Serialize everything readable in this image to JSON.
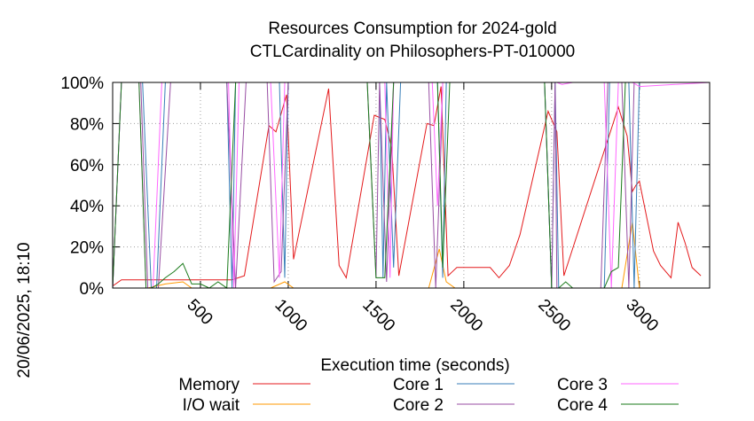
{
  "chart_data": {
    "type": "line",
    "title": [
      "Resources Consumption for 2024-gold",
      "CTLCardinality on Philosophers-PT-010000"
    ],
    "xlabel": "Execution time (seconds)",
    "side_label": "20/06/2025, 18:10",
    "xlim": [
      0,
      3400
    ],
    "ylim": [
      0,
      100
    ],
    "x_ticks": [
      500,
      1000,
      1500,
      2000,
      2500,
      3000
    ],
    "y_ticks": [
      0,
      20,
      40,
      60,
      80,
      100
    ],
    "y_tick_labels": [
      "0%",
      "20%",
      "40%",
      "60%",
      "80%",
      "100%"
    ],
    "grid": true,
    "legend_position": "bottom",
    "series": [
      {
        "name": "Memory",
        "color": "#e41a1c",
        "points": [
          [
            0,
            1
          ],
          [
            50,
            4
          ],
          [
            100,
            4
          ],
          [
            200,
            4
          ],
          [
            300,
            4
          ],
          [
            400,
            4
          ],
          [
            500,
            4
          ],
          [
            600,
            4
          ],
          [
            680,
            4
          ],
          [
            750,
            6
          ],
          [
            890,
            79
          ],
          [
            930,
            76
          ],
          [
            990,
            94
          ],
          [
            1030,
            14
          ],
          [
            1230,
            97
          ],
          [
            1290,
            11
          ],
          [
            1330,
            5
          ],
          [
            1490,
            84
          ],
          [
            1550,
            82
          ],
          [
            1590,
            68
          ],
          [
            1630,
            6
          ],
          [
            1790,
            80
          ],
          [
            1830,
            79
          ],
          [
            1870,
            98
          ],
          [
            1910,
            6
          ],
          [
            1960,
            10
          ],
          [
            2150,
            10
          ],
          [
            2200,
            5
          ],
          [
            2260,
            11
          ],
          [
            2320,
            26
          ],
          [
            2480,
            86
          ],
          [
            2530,
            76
          ],
          [
            2570,
            6
          ],
          [
            2880,
            88
          ],
          [
            2930,
            74
          ],
          [
            2960,
            47
          ],
          [
            2980,
            50
          ],
          [
            3000,
            52
          ],
          [
            3080,
            18
          ],
          [
            3120,
            11
          ],
          [
            3180,
            5
          ],
          [
            3220,
            32
          ],
          [
            3260,
            22
          ],
          [
            3300,
            10
          ],
          [
            3350,
            6
          ]
        ]
      },
      {
        "name": "I/O wait",
        "color": "#ff9900",
        "points": [
          [
            0,
            0
          ],
          [
            100,
            0
          ],
          [
            200,
            0
          ],
          [
            300,
            2
          ],
          [
            400,
            3
          ],
          [
            450,
            0
          ],
          [
            600,
            0
          ],
          [
            700,
            0
          ],
          [
            900,
            0
          ],
          [
            980,
            3
          ],
          [
            1030,
            0
          ],
          [
            1800,
            0
          ],
          [
            1860,
            19
          ],
          [
            1900,
            3
          ],
          [
            1950,
            0
          ],
          [
            2500,
            0
          ],
          [
            2900,
            0
          ],
          [
            2960,
            32
          ],
          [
            3000,
            0
          ],
          [
            3400,
            0
          ]
        ]
      },
      {
        "name": "Core 1",
        "color": "#377eb8",
        "points": [
          [
            0,
            0
          ],
          [
            50,
            100
          ],
          [
            170,
            100
          ],
          [
            220,
            0
          ],
          [
            250,
            0
          ],
          [
            300,
            100
          ],
          [
            650,
            100
          ],
          [
            680,
            0
          ],
          [
            700,
            100
          ],
          [
            950,
            100
          ],
          [
            980,
            5
          ],
          [
            1000,
            100
          ],
          [
            1520,
            100
          ],
          [
            1540,
            5
          ],
          [
            1560,
            100
          ],
          [
            1600,
            10
          ],
          [
            1640,
            100
          ],
          [
            1850,
            100
          ],
          [
            1880,
            5
          ],
          [
            1900,
            100
          ],
          [
            2460,
            100
          ],
          [
            2500,
            0
          ],
          [
            2520,
            100
          ],
          [
            2540,
            0
          ],
          [
            2800,
            0
          ],
          [
            2830,
            100
          ],
          [
            2940,
            100
          ],
          [
            2970,
            0
          ],
          [
            3000,
            100
          ],
          [
            3400,
            100
          ]
        ]
      },
      {
        "name": "Core 2",
        "color": "#984ea3",
        "points": [
          [
            0,
            0
          ],
          [
            50,
            100
          ],
          [
            160,
            100
          ],
          [
            200,
            0
          ],
          [
            260,
            0
          ],
          [
            330,
            100
          ],
          [
            650,
            100
          ],
          [
            700,
            0
          ],
          [
            760,
            100
          ],
          [
            880,
            100
          ],
          [
            920,
            3
          ],
          [
            960,
            8
          ],
          [
            1000,
            100
          ],
          [
            1450,
            100
          ],
          [
            1500,
            5
          ],
          [
            1520,
            100
          ],
          [
            1560,
            3
          ],
          [
            1600,
            100
          ],
          [
            1800,
            100
          ],
          [
            1840,
            0
          ],
          [
            1870,
            70
          ],
          [
            1880,
            100
          ],
          [
            2460,
            100
          ],
          [
            2500,
            0
          ],
          [
            2520,
            100
          ],
          [
            2530,
            0
          ],
          [
            2780,
            0
          ],
          [
            2820,
            100
          ],
          [
            2900,
            100
          ],
          [
            2940,
            0
          ],
          [
            2970,
            100
          ],
          [
            3400,
            100
          ]
        ]
      },
      {
        "name": "Core 3",
        "color": "#ff66ff",
        "points": [
          [
            0,
            0
          ],
          [
            50,
            100
          ],
          [
            150,
            100
          ],
          [
            190,
            0
          ],
          [
            230,
            0
          ],
          [
            280,
            100
          ],
          [
            660,
            100
          ],
          [
            690,
            0
          ],
          [
            720,
            100
          ],
          [
            900,
            100
          ],
          [
            950,
            5
          ],
          [
            980,
            100
          ],
          [
            1550,
            100
          ],
          [
            1580,
            5
          ],
          [
            1600,
            100
          ],
          [
            1820,
            100
          ],
          [
            1850,
            40
          ],
          [
            1880,
            100
          ],
          [
            2530,
            100
          ],
          [
            2560,
            99
          ],
          [
            2620,
            100
          ],
          [
            2800,
            100
          ],
          [
            2840,
            0
          ],
          [
            2880,
            100
          ],
          [
            2960,
            100
          ],
          [
            3000,
            98
          ],
          [
            3400,
            100
          ]
        ]
      },
      {
        "name": "Core 4",
        "color": "#1a7a1a",
        "points": [
          [
            0,
            0
          ],
          [
            50,
            100
          ],
          [
            150,
            100
          ],
          [
            190,
            0
          ],
          [
            220,
            0
          ],
          [
            260,
            2
          ],
          [
            300,
            5
          ],
          [
            350,
            8
          ],
          [
            400,
            12
          ],
          [
            450,
            2
          ],
          [
            500,
            2
          ],
          [
            550,
            0
          ],
          [
            600,
            3
          ],
          [
            650,
            0
          ],
          [
            700,
            100
          ],
          [
            1450,
            100
          ],
          [
            1500,
            5
          ],
          [
            1550,
            5
          ],
          [
            1600,
            100
          ],
          [
            1850,
            100
          ],
          [
            1880,
            10
          ],
          [
            1920,
            100
          ],
          [
            2460,
            100
          ],
          [
            2500,
            0
          ],
          [
            2540,
            0
          ],
          [
            2580,
            3
          ],
          [
            2620,
            0
          ],
          [
            2800,
            0
          ],
          [
            2840,
            8
          ],
          [
            2880,
            10
          ],
          [
            2920,
            100
          ],
          [
            3400,
            100
          ]
        ]
      }
    ]
  }
}
